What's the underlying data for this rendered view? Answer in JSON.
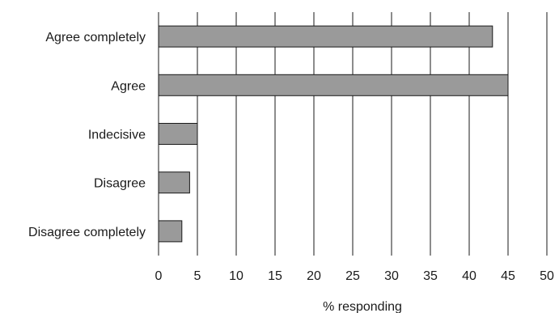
{
  "chart_data": {
    "type": "bar",
    "orientation": "horizontal",
    "categories": [
      "Agree completely",
      "Agree",
      "Indecisive",
      "Disagree",
      "Disagree completely"
    ],
    "values": [
      43,
      45,
      5,
      4,
      3
    ],
    "title": "",
    "xlabel": "% responding",
    "ylabel": "",
    "xlim": [
      0,
      50
    ],
    "xticks": [
      "0",
      "5",
      "10",
      "15",
      "20",
      "25",
      "30",
      "35",
      "40",
      "45",
      "50"
    ],
    "grid": "vertical",
    "bar_color": "#9a9a9a",
    "bar_edge_color": "#1a1a1a"
  }
}
